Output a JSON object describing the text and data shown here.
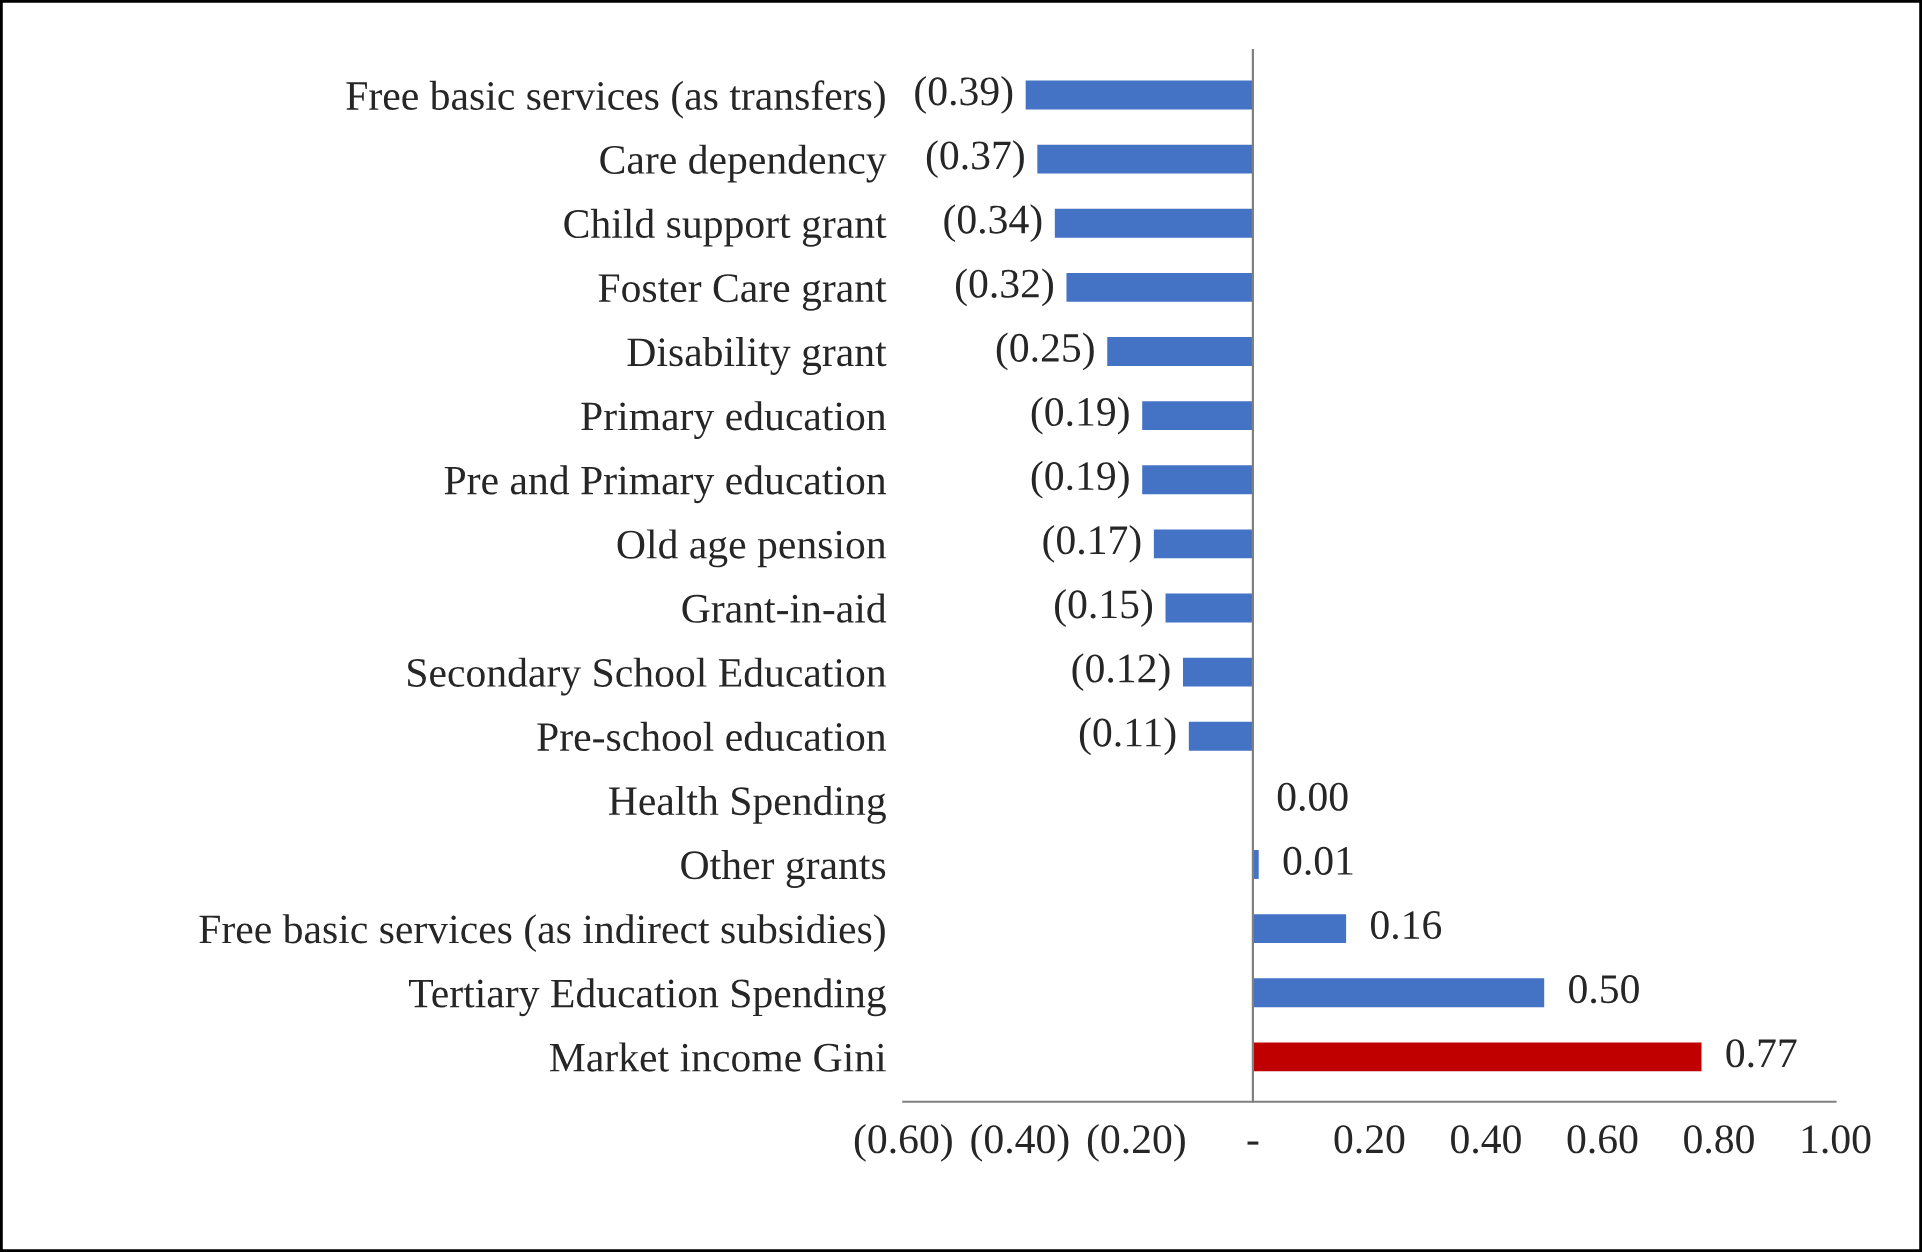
{
  "chart_data": {
    "type": "bar",
    "orientation": "horizontal",
    "categories": [
      "Free basic services (as transfers)",
      "Care dependency",
      "Child support grant",
      "Foster Care grant",
      "Disability grant",
      "Primary education",
      "Pre and Primary education",
      "Old age pension",
      "Grant-in-aid",
      "Secondary School Education",
      "Pre-school education",
      "Health Spending",
      "Other grants",
      "Free basic services (as indirect subsidies)",
      "Tertiary Education Spending",
      "Market income Gini"
    ],
    "values": [
      -0.39,
      -0.37,
      -0.34,
      -0.32,
      -0.25,
      -0.19,
      -0.19,
      -0.17,
      -0.15,
      -0.12,
      -0.11,
      0.0,
      0.01,
      0.16,
      0.5,
      0.77
    ],
    "value_labels": [
      "(0.39)",
      "(0.37)",
      "(0.34)",
      "(0.32)",
      "(0.25)",
      "(0.19)",
      "(0.19)",
      "(0.17)",
      "(0.15)",
      "(0.12)",
      "(0.11)",
      "0.00",
      "0.01",
      "0.16",
      "0.50",
      "0.77"
    ],
    "colors": [
      "#4472c4",
      "#4472c4",
      "#4472c4",
      "#4472c4",
      "#4472c4",
      "#4472c4",
      "#4472c4",
      "#4472c4",
      "#4472c4",
      "#4472c4",
      "#4472c4",
      "#4472c4",
      "#4472c4",
      "#4472c4",
      "#4472c4",
      "#c00000"
    ],
    "xlim": [
      -0.6,
      1.0
    ],
    "xticks": [
      {
        "value": -0.6,
        "label": "(0.60)"
      },
      {
        "value": -0.4,
        "label": "(0.40)"
      },
      {
        "value": -0.2,
        "label": "(0.20)"
      },
      {
        "value": 0,
        "label": "-"
      },
      {
        "value": 0.2,
        "label": "0.20"
      },
      {
        "value": 0.4,
        "label": "0.40"
      },
      {
        "value": 0.6,
        "label": "0.60"
      },
      {
        "value": 0.8,
        "label": "0.80"
      },
      {
        "value": 1.0,
        "label": "1.00"
      }
    ],
    "legend": false
  }
}
